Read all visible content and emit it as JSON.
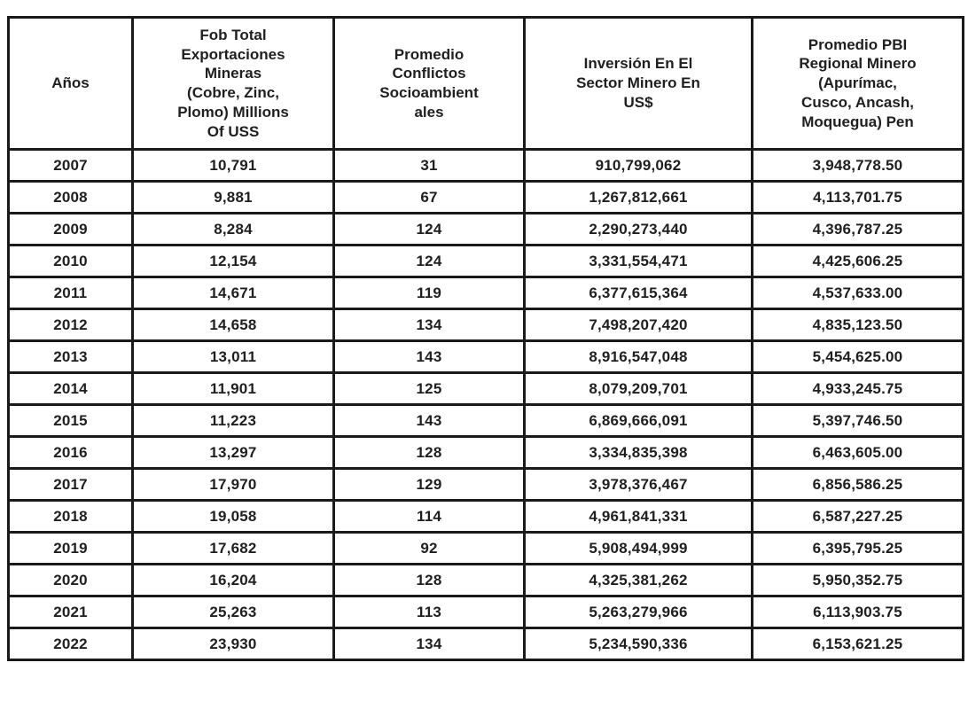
{
  "colors": {
    "background": "#ffffff",
    "border": "#1a1a1a",
    "text": "#1f1f1f"
  },
  "table": {
    "columns": [
      {
        "id": "anios",
        "label": "Años"
      },
      {
        "id": "fob",
        "label": "Fob Total\nExportaciones\nMineras\n(Cobre, Zinc,\nPlomo) Millions\nOf USS"
      },
      {
        "id": "conflictos",
        "label": "Promedio\nConflictos\nSocioambient\nales"
      },
      {
        "id": "inversion",
        "label": "Inversión En El\nSector Minero En\nUS$"
      },
      {
        "id": "pbi",
        "label": "Promedio PBI\nRegional Minero\n(Apurímac,\nCusco, Ancash,\nMoquegua) Pen"
      }
    ],
    "rows": [
      [
        "2007",
        "10,791",
        "31",
        "910,799,062",
        "3,948,778.50"
      ],
      [
        "2008",
        "9,881",
        "67",
        "1,267,812,661",
        "4,113,701.75"
      ],
      [
        "2009",
        "8,284",
        "124",
        "2,290,273,440",
        "4,396,787.25"
      ],
      [
        "2010",
        "12,154",
        "124",
        "3,331,554,471",
        "4,425,606.25"
      ],
      [
        "2011",
        "14,671",
        "119",
        "6,377,615,364",
        "4,537,633.00"
      ],
      [
        "2012",
        "14,658",
        "134",
        "7,498,207,420",
        "4,835,123.50"
      ],
      [
        "2013",
        "13,011",
        "143",
        "8,916,547,048",
        "5,454,625.00"
      ],
      [
        "2014",
        "11,901",
        "125",
        "8,079,209,701",
        "4,933,245.75"
      ],
      [
        "2015",
        "11,223",
        "143",
        "6,869,666,091",
        "5,397,746.50"
      ],
      [
        "2016",
        "13,297",
        "128",
        "3,334,835,398",
        "6,463,605.00"
      ],
      [
        "2017",
        "17,970",
        "129",
        "3,978,376,467",
        "6,856,586.25"
      ],
      [
        "2018",
        "19,058",
        "114",
        "4,961,841,331",
        "6,587,227.25"
      ],
      [
        "2019",
        "17,682",
        "92",
        "5,908,494,999",
        "6,395,795.25"
      ],
      [
        "2020",
        "16,204",
        "128",
        "4,325,381,262",
        "5,950,352.75"
      ],
      [
        "2021",
        "25,263",
        "113",
        "5,263,279,966",
        "6,113,903.75"
      ],
      [
        "2022",
        "23,930",
        "134",
        "5,234,590,336",
        "6,153,621.25"
      ]
    ]
  },
  "chart_data": {
    "type": "table",
    "title": "",
    "categories": [
      2007,
      2008,
      2009,
      2010,
      2011,
      2012,
      2013,
      2014,
      2015,
      2016,
      2017,
      2018,
      2019,
      2020,
      2021,
      2022
    ],
    "series": [
      {
        "name": "Fob Total Exportaciones Mineras (Cobre, Zinc, Plomo) Millions Of USS",
        "values": [
          10791,
          9881,
          8284,
          12154,
          14671,
          14658,
          13011,
          11901,
          11223,
          13297,
          17970,
          19058,
          17682,
          16204,
          25263,
          23930
        ]
      },
      {
        "name": "Promedio Conflictos Socioambientales",
        "values": [
          31,
          67,
          124,
          124,
          119,
          134,
          143,
          125,
          143,
          128,
          129,
          114,
          92,
          128,
          113,
          134
        ]
      },
      {
        "name": "Inversión En El Sector Minero En US$",
        "values": [
          910799062,
          1267812661,
          2290273440,
          3331554471,
          6377615364,
          7498207420,
          8916547048,
          8079209701,
          6869666091,
          3334835398,
          3978376467,
          4961841331,
          5908494999,
          4325381262,
          5263279966,
          5234590336
        ]
      },
      {
        "name": "Promedio PBI Regional Minero (Apurímac, Cusco, Ancash, Moquegua) Pen",
        "values": [
          3948778.5,
          4113701.75,
          4396787.25,
          4425606.25,
          4537633.0,
          4835123.5,
          5454625.0,
          4933245.75,
          5397746.5,
          6463605.0,
          6856586.25,
          6587227.25,
          6395795.25,
          5950352.75,
          6113903.75,
          6153621.25
        ]
      }
    ]
  }
}
